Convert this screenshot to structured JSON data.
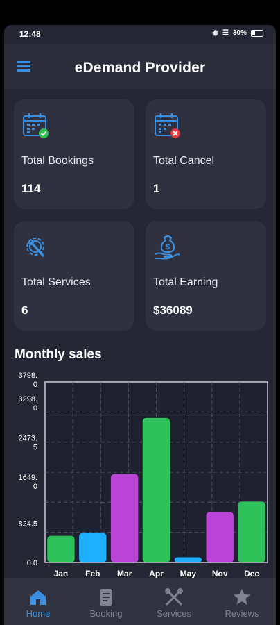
{
  "status_bar": {
    "time": "12:48",
    "battery": "30%"
  },
  "app_bar": {
    "title": "eDemand Provider"
  },
  "stats": [
    {
      "label": "Total Bookings",
      "value": "114",
      "icon": "calendar-check-icon"
    },
    {
      "label": "Total Cancel",
      "value": "1",
      "icon": "calendar-cancel-icon"
    },
    {
      "label": "Total Services",
      "value": "6",
      "icon": "gear-wrench-icon"
    },
    {
      "label": "Total Earning",
      "value": "$36089",
      "icon": "money-bag-hand-icon"
    }
  ],
  "section": {
    "monthly_sales_title": "Monthly sales"
  },
  "chart_data": {
    "type": "bar",
    "title": "Monthly sales",
    "categories": [
      "Jan",
      "Feb",
      "Mar",
      "Apr",
      "May",
      "Nov",
      "Dec"
    ],
    "values": [
      560,
      620,
      1860,
      3040,
      110,
      1060,
      1280
    ],
    "y_ticks": [
      "0.0",
      "824.5",
      "1649.\n0",
      "2473.\n5",
      "3298.\n0",
      "3798.\n0"
    ],
    "ylim": [
      0,
      3798
    ],
    "grid": true,
    "colors": [
      "#2fc15a",
      "#1eb0ff",
      "#b944d6",
      "#2fc15a",
      "#1eb0ff",
      "#b944d6",
      "#2fc15a"
    ]
  },
  "bottom_nav": [
    {
      "label": "Home",
      "icon": "home-icon",
      "active": true
    },
    {
      "label": "Booking",
      "icon": "document-icon",
      "active": false
    },
    {
      "label": "Services",
      "icon": "tools-icon",
      "active": false
    },
    {
      "label": "Reviews",
      "icon": "star-icon",
      "active": false
    }
  ]
}
